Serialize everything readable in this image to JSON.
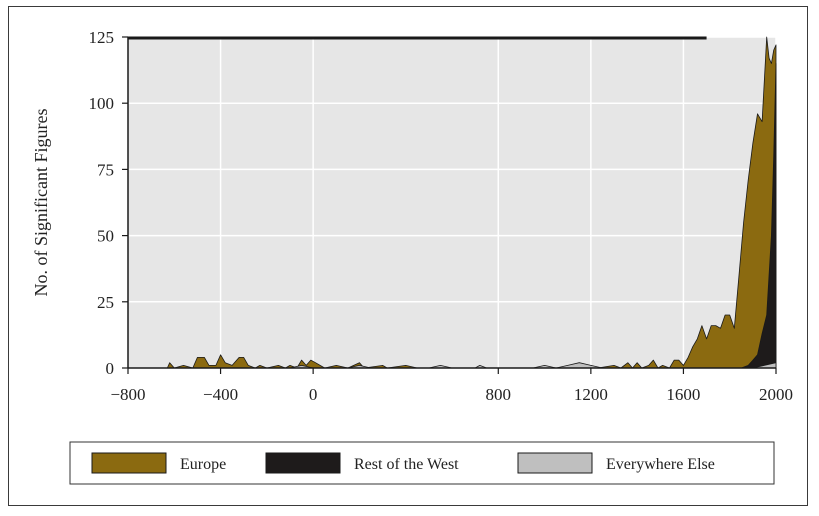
{
  "chart_data": {
    "type": "area",
    "title": "",
    "xlabel": "",
    "ylabel": "No. of Significant Figures",
    "xlim": [
      -800,
      2000
    ],
    "ylim": [
      0,
      125
    ],
    "xticks": [
      -800,
      -400,
      0,
      800,
      1200,
      1600,
      2000
    ],
    "xtick_labels": [
      "−800",
      "−400",
      "0",
      "800",
      "1200",
      "1600",
      "2000"
    ],
    "yticks": [
      0,
      25,
      50,
      75,
      100,
      125
    ],
    "ytick_labels": [
      "0",
      "25",
      "50",
      "75",
      "100",
      "125"
    ],
    "grid": true,
    "legend_position": "bottom",
    "series": [
      {
        "name": "Europe",
        "color": "#8b6a10",
        "points": [
          [
            -800,
            0
          ],
          [
            -630,
            0
          ],
          [
            -620,
            2
          ],
          [
            -600,
            0
          ],
          [
            -560,
            1
          ],
          [
            -520,
            0
          ],
          [
            -500,
            4
          ],
          [
            -470,
            4
          ],
          [
            -450,
            1
          ],
          [
            -420,
            1
          ],
          [
            -400,
            5
          ],
          [
            -380,
            2
          ],
          [
            -350,
            1
          ],
          [
            -320,
            4
          ],
          [
            -300,
            4
          ],
          [
            -280,
            1
          ],
          [
            -250,
            0
          ],
          [
            -230,
            1
          ],
          [
            -200,
            0
          ],
          [
            -150,
            1
          ],
          [
            -120,
            0
          ],
          [
            -100,
            1
          ],
          [
            -70,
            0
          ],
          [
            -50,
            3
          ],
          [
            -30,
            1
          ],
          [
            -10,
            3
          ],
          [
            10,
            2
          ],
          [
            30,
            1
          ],
          [
            50,
            0
          ],
          [
            100,
            1
          ],
          [
            150,
            0
          ],
          [
            200,
            2
          ],
          [
            220,
            0
          ],
          [
            300,
            1
          ],
          [
            320,
            0
          ],
          [
            400,
            1
          ],
          [
            450,
            0
          ],
          [
            800,
            0
          ],
          [
            1100,
            0
          ],
          [
            1200,
            1
          ],
          [
            1230,
            0
          ],
          [
            1300,
            1
          ],
          [
            1330,
            0
          ],
          [
            1360,
            2
          ],
          [
            1380,
            0
          ],
          [
            1400,
            2
          ],
          [
            1420,
            0
          ],
          [
            1450,
            1
          ],
          [
            1470,
            3
          ],
          [
            1490,
            0
          ],
          [
            1510,
            1
          ],
          [
            1540,
            0
          ],
          [
            1560,
            3
          ],
          [
            1580,
            3
          ],
          [
            1600,
            1
          ],
          [
            1620,
            4
          ],
          [
            1640,
            8
          ],
          [
            1660,
            11
          ],
          [
            1680,
            16
          ],
          [
            1700,
            11
          ],
          [
            1720,
            16
          ],
          [
            1740,
            16
          ],
          [
            1760,
            15
          ],
          [
            1780,
            20
          ],
          [
            1800,
            20
          ],
          [
            1820,
            15
          ],
          [
            1840,
            35
          ],
          [
            1860,
            55
          ],
          [
            1880,
            71
          ],
          [
            1900,
            85
          ],
          [
            1920,
            96
          ],
          [
            1940,
            93
          ],
          [
            1960,
            125
          ],
          [
            1970,
            117
          ],
          [
            1980,
            115
          ],
          [
            1990,
            120
          ],
          [
            2000,
            122
          ]
        ]
      },
      {
        "name": "Rest of the West",
        "color": "#1e1b1b",
        "points": [
          [
            1850,
            0
          ],
          [
            1880,
            1
          ],
          [
            1900,
            3
          ],
          [
            1920,
            5
          ],
          [
            1940,
            13
          ],
          [
            1960,
            20
          ],
          [
            1980,
            50
          ],
          [
            1990,
            80
          ],
          [
            2000,
            115
          ]
        ]
      },
      {
        "name": "Everywhere Else",
        "color": "#bfbfbf",
        "points": [
          [
            -800,
            0
          ],
          [
            -100,
            0
          ],
          [
            -50,
            1
          ],
          [
            0,
            0
          ],
          [
            150,
            0
          ],
          [
            200,
            1
          ],
          [
            250,
            0
          ],
          [
            500,
            0
          ],
          [
            550,
            1
          ],
          [
            600,
            0
          ],
          [
            700,
            0
          ],
          [
            720,
            1
          ],
          [
            750,
            0
          ],
          [
            950,
            0
          ],
          [
            1000,
            1
          ],
          [
            1050,
            0
          ],
          [
            1100,
            1
          ],
          [
            1150,
            2
          ],
          [
            1200,
            1
          ],
          [
            1250,
            0
          ],
          [
            1300,
            0
          ],
          [
            1900,
            0
          ],
          [
            1950,
            1
          ],
          [
            2000,
            2
          ]
        ]
      }
    ]
  },
  "legend": {
    "items": [
      {
        "label": "Europe",
        "color": "#8b6a10"
      },
      {
        "label": "Rest of the West",
        "color": "#1e1b1b"
      },
      {
        "label": "Everywhere Else",
        "color": "#bfbfbf"
      }
    ]
  }
}
